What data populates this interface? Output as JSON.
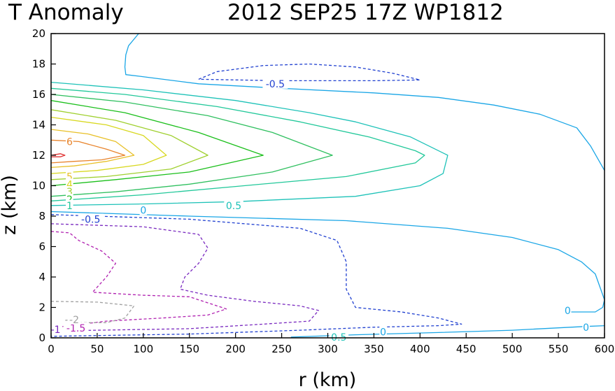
{
  "chart_data": {
    "type": "contour",
    "title_left": "T Anomaly",
    "title_right": "2012 SEP25 17Z   WP1812",
    "xlabel": "r (km)",
    "ylabel": "z (km)",
    "xlim": [
      0,
      600
    ],
    "ylim": [
      0,
      20
    ],
    "xticks": [
      "0",
      "50",
      "100",
      "150",
      "200",
      "250",
      "300",
      "350",
      "400",
      "450",
      "500",
      "550",
      "600"
    ],
    "yticks": [
      "0",
      "2",
      "4",
      "6",
      "8",
      "10",
      "12",
      "14",
      "16",
      "18",
      "20"
    ],
    "contours": [
      {
        "name": "contour-0-upper",
        "level": 0,
        "color": "#1aa6e6",
        "dashed": false,
        "points": [
          [
            95,
            20
          ],
          [
            84,
            19.2
          ],
          [
            81,
            18.6
          ],
          [
            80,
            17.8
          ],
          [
            81,
            17.3
          ],
          [
            95,
            17.2
          ],
          [
            160,
            16.7
          ],
          [
            250,
            16.4
          ],
          [
            350,
            16.1
          ],
          [
            420,
            15.8
          ],
          [
            480,
            15.3
          ],
          [
            530,
            14.7
          ],
          [
            570,
            13.8
          ],
          [
            585,
            12.6
          ],
          [
            600,
            11
          ]
        ]
      },
      {
        "name": "contour-0-lower",
        "level": 0,
        "color": "#1aa6e6",
        "dashed": false,
        "points": [
          [
            0,
            8.3
          ],
          [
            150,
            8.0
          ],
          [
            320,
            7.7
          ],
          [
            430,
            7.2
          ],
          [
            500,
            6.6
          ],
          [
            550,
            5.8
          ],
          [
            575,
            5.0
          ],
          [
            590,
            4.2
          ],
          [
            600,
            2.5
          ],
          [
            598,
            2.0
          ],
          [
            590,
            1.7
          ],
          [
            560,
            1.7
          ]
        ]
      },
      {
        "name": "contour-0-bottom",
        "level": 0,
        "color": "#1aa6e6",
        "dashed": false,
        "points": [
          [
            260,
            0.05
          ],
          [
            330,
            0.2
          ],
          [
            420,
            0.35
          ],
          [
            500,
            0.5
          ],
          [
            580,
            0.75
          ],
          [
            600,
            0.8
          ]
        ]
      },
      {
        "name": "contour-0.5",
        "level": 0.5,
        "color": "#1ec2b8",
        "dashed": false,
        "points": [
          [
            0,
            16.8
          ],
          [
            100,
            16.3
          ],
          [
            200,
            15.6
          ],
          [
            280,
            14.8
          ],
          [
            330,
            14.2
          ],
          [
            390,
            13.2
          ],
          [
            430,
            12
          ],
          [
            425,
            10.8
          ],
          [
            400,
            10.0
          ],
          [
            330,
            9.3
          ],
          [
            200,
            8.95
          ],
          [
            100,
            8.8
          ],
          [
            0,
            8.7
          ]
        ]
      },
      {
        "name": "contour-1",
        "level": 1,
        "color": "#22c89a",
        "dashed": false,
        "points": [
          [
            0,
            16.4
          ],
          [
            80,
            16.0
          ],
          [
            180,
            15.2
          ],
          [
            270,
            14.2
          ],
          [
            345,
            13.2
          ],
          [
            395,
            12.3
          ],
          [
            405,
            12
          ],
          [
            395,
            11.5
          ],
          [
            320,
            10.6
          ],
          [
            200,
            9.95
          ],
          [
            100,
            9.4
          ],
          [
            0,
            9.0
          ]
        ]
      },
      {
        "name": "contour-1.5",
        "level": 1.5,
        "color": "#30c060",
        "dashed": false,
        "points": [
          [
            0,
            16.0
          ],
          [
            80,
            15.5
          ],
          [
            170,
            14.6
          ],
          [
            240,
            13.5
          ],
          [
            305,
            12
          ],
          [
            240,
            10.9
          ],
          [
            150,
            10.1
          ],
          [
            70,
            9.6
          ],
          [
            0,
            9.3
          ]
        ]
      },
      {
        "name": "contour-2",
        "level": 2,
        "color": "#1bbf1b",
        "dashed": false,
        "points": [
          [
            0,
            15.6
          ],
          [
            80,
            14.8
          ],
          [
            160,
            13.5
          ],
          [
            230,
            12
          ],
          [
            150,
            10.9
          ],
          [
            70,
            10.4
          ],
          [
            0,
            10.0
          ]
        ]
      },
      {
        "name": "contour-3",
        "level": 3,
        "color": "#a0d030",
        "dashed": false,
        "points": [
          [
            0,
            15.0
          ],
          [
            70,
            14.3
          ],
          [
            130,
            13.3
          ],
          [
            170,
            12
          ],
          [
            130,
            11.1
          ],
          [
            60,
            10.6
          ],
          [
            0,
            10.4
          ]
        ]
      },
      {
        "name": "contour-4",
        "level": 4,
        "color": "#d8d820",
        "dashed": false,
        "points": [
          [
            0,
            14.5
          ],
          [
            60,
            14.0
          ],
          [
            100,
            13.3
          ],
          [
            125,
            12
          ],
          [
            100,
            11.4
          ],
          [
            50,
            11.0
          ],
          [
            0,
            10.8
          ]
        ]
      },
      {
        "name": "contour-5",
        "level": 5,
        "color": "#e8c028",
        "dashed": false,
        "points": [
          [
            0,
            13.7
          ],
          [
            40,
            13.4
          ],
          [
            70,
            12.9
          ],
          [
            90,
            12
          ],
          [
            60,
            11.6
          ],
          [
            25,
            11.3
          ],
          [
            0,
            11.2
          ]
        ]
      },
      {
        "name": "contour-6",
        "level": 6,
        "color": "#e8842c",
        "dashed": false,
        "points": [
          [
            0,
            13.0
          ],
          [
            30,
            12.9
          ],
          [
            60,
            12.4
          ],
          [
            80,
            12.0
          ],
          [
            55,
            11.7
          ],
          [
            25,
            11.6
          ],
          [
            0,
            11.5
          ]
        ]
      },
      {
        "name": "contour-7",
        "level": 7,
        "color": "#e03030",
        "dashed": false,
        "points": [
          [
            0,
            12.0
          ],
          [
            10,
            12.1
          ],
          [
            15,
            12.0
          ],
          [
            10,
            11.9
          ],
          [
            0,
            11.9
          ]
        ]
      },
      {
        "name": "contour-neg0.5-upper",
        "level": -0.5,
        "color": "#2040d0",
        "dashed": true,
        "points": [
          [
            160,
            17.0
          ],
          [
            180,
            17.5
          ],
          [
            230,
            17.9
          ],
          [
            280,
            18.0
          ],
          [
            330,
            17.8
          ],
          [
            370,
            17.4
          ],
          [
            400,
            16.95
          ],
          [
            350,
            16.9
          ],
          [
            250,
            16.9
          ],
          [
            160,
            17.0
          ]
        ]
      },
      {
        "name": "contour-neg0.5-lower",
        "level": -0.5,
        "color": "#2040d0",
        "dashed": true,
        "points": [
          [
            0,
            8.1
          ],
          [
            150,
            7.8
          ],
          [
            270,
            7.2
          ],
          [
            310,
            6.4
          ],
          [
            320,
            5.0
          ],
          [
            320,
            3.2
          ],
          [
            330,
            2.0
          ],
          [
            380,
            1.7
          ],
          [
            420,
            1.3
          ],
          [
            445,
            0.9
          ],
          [
            420,
            0.8
          ],
          [
            350,
            0.7
          ],
          [
            270,
            0.5
          ],
          [
            150,
            0.25
          ],
          [
            0,
            0.1
          ]
        ]
      },
      {
        "name": "contour-neg1",
        "level": -1,
        "color": "#7a2ac0",
        "dashed": true,
        "points": [
          [
            0,
            7.5
          ],
          [
            100,
            7.3
          ],
          [
            160,
            6.8
          ],
          [
            170,
            5.9
          ],
          [
            160,
            4.9
          ],
          [
            145,
            4.0
          ],
          [
            140,
            3.2
          ],
          [
            170,
            2.8
          ],
          [
            220,
            2.4
          ],
          [
            270,
            2.1
          ],
          [
            290,
            1.8
          ],
          [
            280,
            1.1
          ],
          [
            230,
            0.9
          ],
          [
            150,
            0.6
          ],
          [
            0,
            0.45
          ]
        ]
      },
      {
        "name": "contour-neg1.5",
        "level": -1.5,
        "color": "#b020b0",
        "dashed": true,
        "points": [
          [
            0,
            7.0
          ],
          [
            20,
            6.9
          ],
          [
            30,
            6.4
          ],
          [
            55,
            5.7
          ],
          [
            70,
            4.9
          ],
          [
            60,
            4.0
          ],
          [
            45,
            3.0
          ],
          [
            100,
            2.8
          ],
          [
            150,
            2.7
          ],
          [
            190,
            1.9
          ],
          [
            170,
            1.5
          ],
          [
            120,
            1.3
          ],
          [
            60,
            1.1
          ],
          [
            0,
            0.65
          ]
        ]
      },
      {
        "name": "contour-neg2",
        "level": -2,
        "color": "#a0a0a0",
        "dashed": true,
        "points": [
          [
            0,
            2.4
          ],
          [
            50,
            2.35
          ],
          [
            90,
            2.1
          ],
          [
            80,
            1.3
          ],
          [
            60,
            1.0
          ],
          [
            30,
            1.0
          ],
          [
            25,
            1.2
          ],
          [
            15,
            1.15
          ]
        ]
      }
    ],
    "labels": [
      {
        "name": "label-6",
        "text": "6",
        "x": 20,
        "y": 12.9,
        "color": "#e8842c"
      },
      {
        "name": "label-5",
        "text": "5",
        "x": 20,
        "y": 10.6,
        "color": "#e8c028"
      },
      {
        "name": "label-4",
        "text": "4",
        "x": 20,
        "y": 10.1,
        "color": "#d8d820"
      },
      {
        "name": "label-3",
        "text": "3",
        "x": 20,
        "y": 9.6,
        "color": "#a0d030"
      },
      {
        "name": "label-2",
        "text": "2",
        "x": 20,
        "y": 9.1,
        "color": "#1bbf1b"
      },
      {
        "name": "label-1",
        "text": "1",
        "x": 20,
        "y": 8.7,
        "color": "#22c89a"
      },
      {
        "name": "label-0-left",
        "text": "0",
        "x": 100,
        "y": 8.4,
        "color": "#1aa6e6"
      },
      {
        "name": "label-0.5-mid",
        "text": "0.5",
        "x": 198,
        "y": 8.7,
        "color": "#1ec2b8"
      },
      {
        "name": "label-neg0.5-left",
        "text": "-0.5",
        "x": 43,
        "y": 7.8,
        "color": "#2040d0"
      },
      {
        "name": "label-neg0.5-top",
        "text": "-0.5",
        "x": 243,
        "y": 16.7,
        "color": "#2040d0"
      },
      {
        "name": "label-0-right",
        "text": "0",
        "x": 560,
        "y": 1.8,
        "color": "#1aa6e6"
      },
      {
        "name": "label-0-bottom-right",
        "text": "0",
        "x": 580,
        "y": 0.7,
        "color": "#1aa6e6"
      },
      {
        "name": "label-0-bottom",
        "text": "0",
        "x": 360,
        "y": 0.4,
        "color": "#1aa6e6"
      },
      {
        "name": "label-0.5-bottom",
        "text": "0.5",
        "x": 312,
        "y": 0.05,
        "color": "#1ec2b8"
      },
      {
        "name": "label-neg1-left",
        "text": "-1",
        "x": 5,
        "y": 0.55,
        "color": "#7a2ac0"
      },
      {
        "name": "label-neg1.5-left",
        "text": "-1.5",
        "x": 27,
        "y": 0.65,
        "color": "#b020b0"
      },
      {
        "name": "label-neg2-left",
        "text": "-2",
        "x": 25,
        "y": 1.2,
        "color": "#a0a0a0"
      }
    ]
  }
}
